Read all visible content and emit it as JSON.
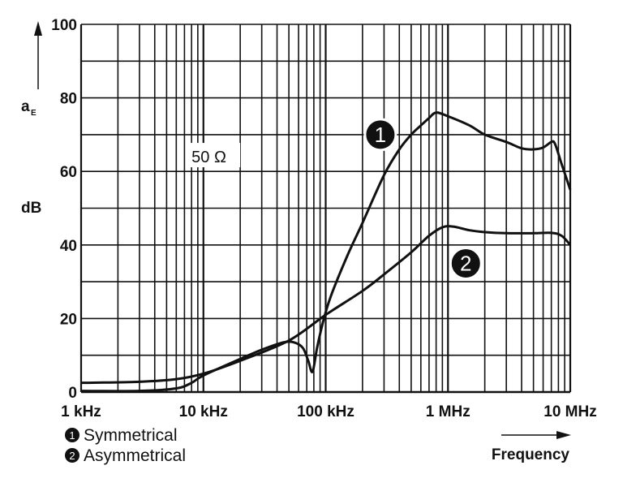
{
  "chart_data": {
    "type": "line",
    "title": "",
    "xlabel": "Frequency",
    "ylabel": "dB",
    "ylabel_symbol": "a",
    "ylabel_subscript": "E",
    "xscale": "log",
    "xlim_hz": [
      1000,
      10000000
    ],
    "ylim": [
      0,
      100
    ],
    "grid": true,
    "x_ticks": [
      {
        "value": 1000,
        "label": "1 kHz"
      },
      {
        "value": 10000,
        "label": "10 kHz"
      },
      {
        "value": 100000,
        "label": "100 kHz"
      },
      {
        "value": 1000000,
        "label": "1 MHz"
      },
      {
        "value": 10000000,
        "label": "10 MHz"
      }
    ],
    "y_ticks": [
      {
        "value": 0,
        "label": "0"
      },
      {
        "value": 20,
        "label": "20"
      },
      {
        "value": 40,
        "label": "40"
      },
      {
        "value": 60,
        "label": "60"
      },
      {
        "value": 80,
        "label": "80"
      },
      {
        "value": 100,
        "label": "100"
      }
    ],
    "annotation_text": "50 Ω",
    "annotation_pos": {
      "freq": 8000,
      "db": 64
    },
    "series": [
      {
        "id": "1",
        "name": "Symmetrical",
        "label_pos": {
          "freq": 280000,
          "db": 70
        },
        "x": [
          1000,
          3000,
          6000,
          8000,
          10000,
          20000,
          30000,
          45000,
          55000,
          65000,
          72000,
          78000,
          85000,
          95000,
          110000,
          150000,
          200000,
          300000,
          400000,
          500000,
          600000,
          700000,
          800000,
          1000000,
          1500000,
          2000000,
          3000000,
          4000000,
          5000000,
          6000000,
          7000000,
          7500000,
          8500000,
          10000000
        ],
        "y": [
          0.3,
          0.3,
          1,
          2.5,
          4.5,
          9,
          11.5,
          13.5,
          13.5,
          12,
          8.5,
          5.5,
          12,
          19,
          26,
          37,
          46,
          59,
          66,
          70,
          72.5,
          74.5,
          76,
          75,
          72.5,
          70,
          68,
          66.3,
          66,
          66.5,
          68,
          67.5,
          62,
          55
        ]
      },
      {
        "id": "2",
        "name": "Asymmetrical",
        "label_pos": {
          "freq": 1400000,
          "db": 35
        },
        "x": [
          1000,
          3000,
          6000,
          10000,
          20000,
          50000,
          100000,
          200000,
          300000,
          500000,
          700000,
          900000,
          1100000,
          1500000,
          2000000,
          3000000,
          5000000,
          7000000,
          8500000,
          10000000
        ],
        "y": [
          2.5,
          2.8,
          3.5,
          5,
          8.5,
          14,
          21,
          27.5,
          32,
          38,
          42.5,
          44.8,
          45,
          44,
          43.5,
          43.2,
          43.2,
          43.3,
          42.5,
          40
        ]
      }
    ],
    "legend_position": "bottom-left"
  }
}
